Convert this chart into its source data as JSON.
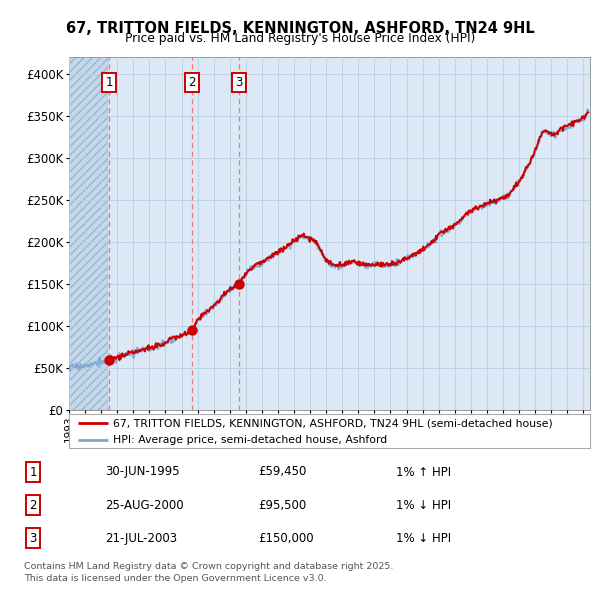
{
  "title": "67, TRITTON FIELDS, KENNINGTON, ASHFORD, TN24 9HL",
  "subtitle": "Price paid vs. HM Land Registry's House Price Index (HPI)",
  "xlim": [
    1993.0,
    2025.4
  ],
  "ylim": [
    0,
    420000
  ],
  "yticks": [
    0,
    50000,
    100000,
    150000,
    200000,
    250000,
    300000,
    350000,
    400000
  ],
  "ytick_labels": [
    "£0",
    "£50K",
    "£100K",
    "£150K",
    "£200K",
    "£250K",
    "£300K",
    "£350K",
    "£400K"
  ],
  "hatch_region_end": 1995.45,
  "sales": [
    {
      "year": 1995.49,
      "price": 59450,
      "label": "1"
    },
    {
      "year": 2000.65,
      "price": 95500,
      "label": "2"
    },
    {
      "year": 2003.56,
      "price": 150000,
      "label": "3"
    }
  ],
  "hpi_line_color": "#7aa6d4",
  "price_line_color": "#cc0000",
  "sale_dot_color": "#cc0000",
  "dashed_line_color": "#e87070",
  "legend_entries": [
    "67, TRITTON FIELDS, KENNINGTON, ASHFORD, TN24 9HL (semi-detached house)",
    "HPI: Average price, semi-detached house, Ashford"
  ],
  "table_data": [
    [
      "1",
      "30-JUN-1995",
      "£59,450",
      "1% ↑ HPI"
    ],
    [
      "2",
      "25-AUG-2000",
      "£95,500",
      "1% ↓ HPI"
    ],
    [
      "3",
      "21-JUL-2003",
      "£150,000",
      "1% ↓ HPI"
    ]
  ],
  "footer": "Contains HM Land Registry data © Crown copyright and database right 2025.\nThis data is licensed under the Open Government Licence v3.0.",
  "bg_color": "#dce8f5",
  "hatch_bg_color": "#c5d8eb",
  "grid_color": "#b8cfe0"
}
